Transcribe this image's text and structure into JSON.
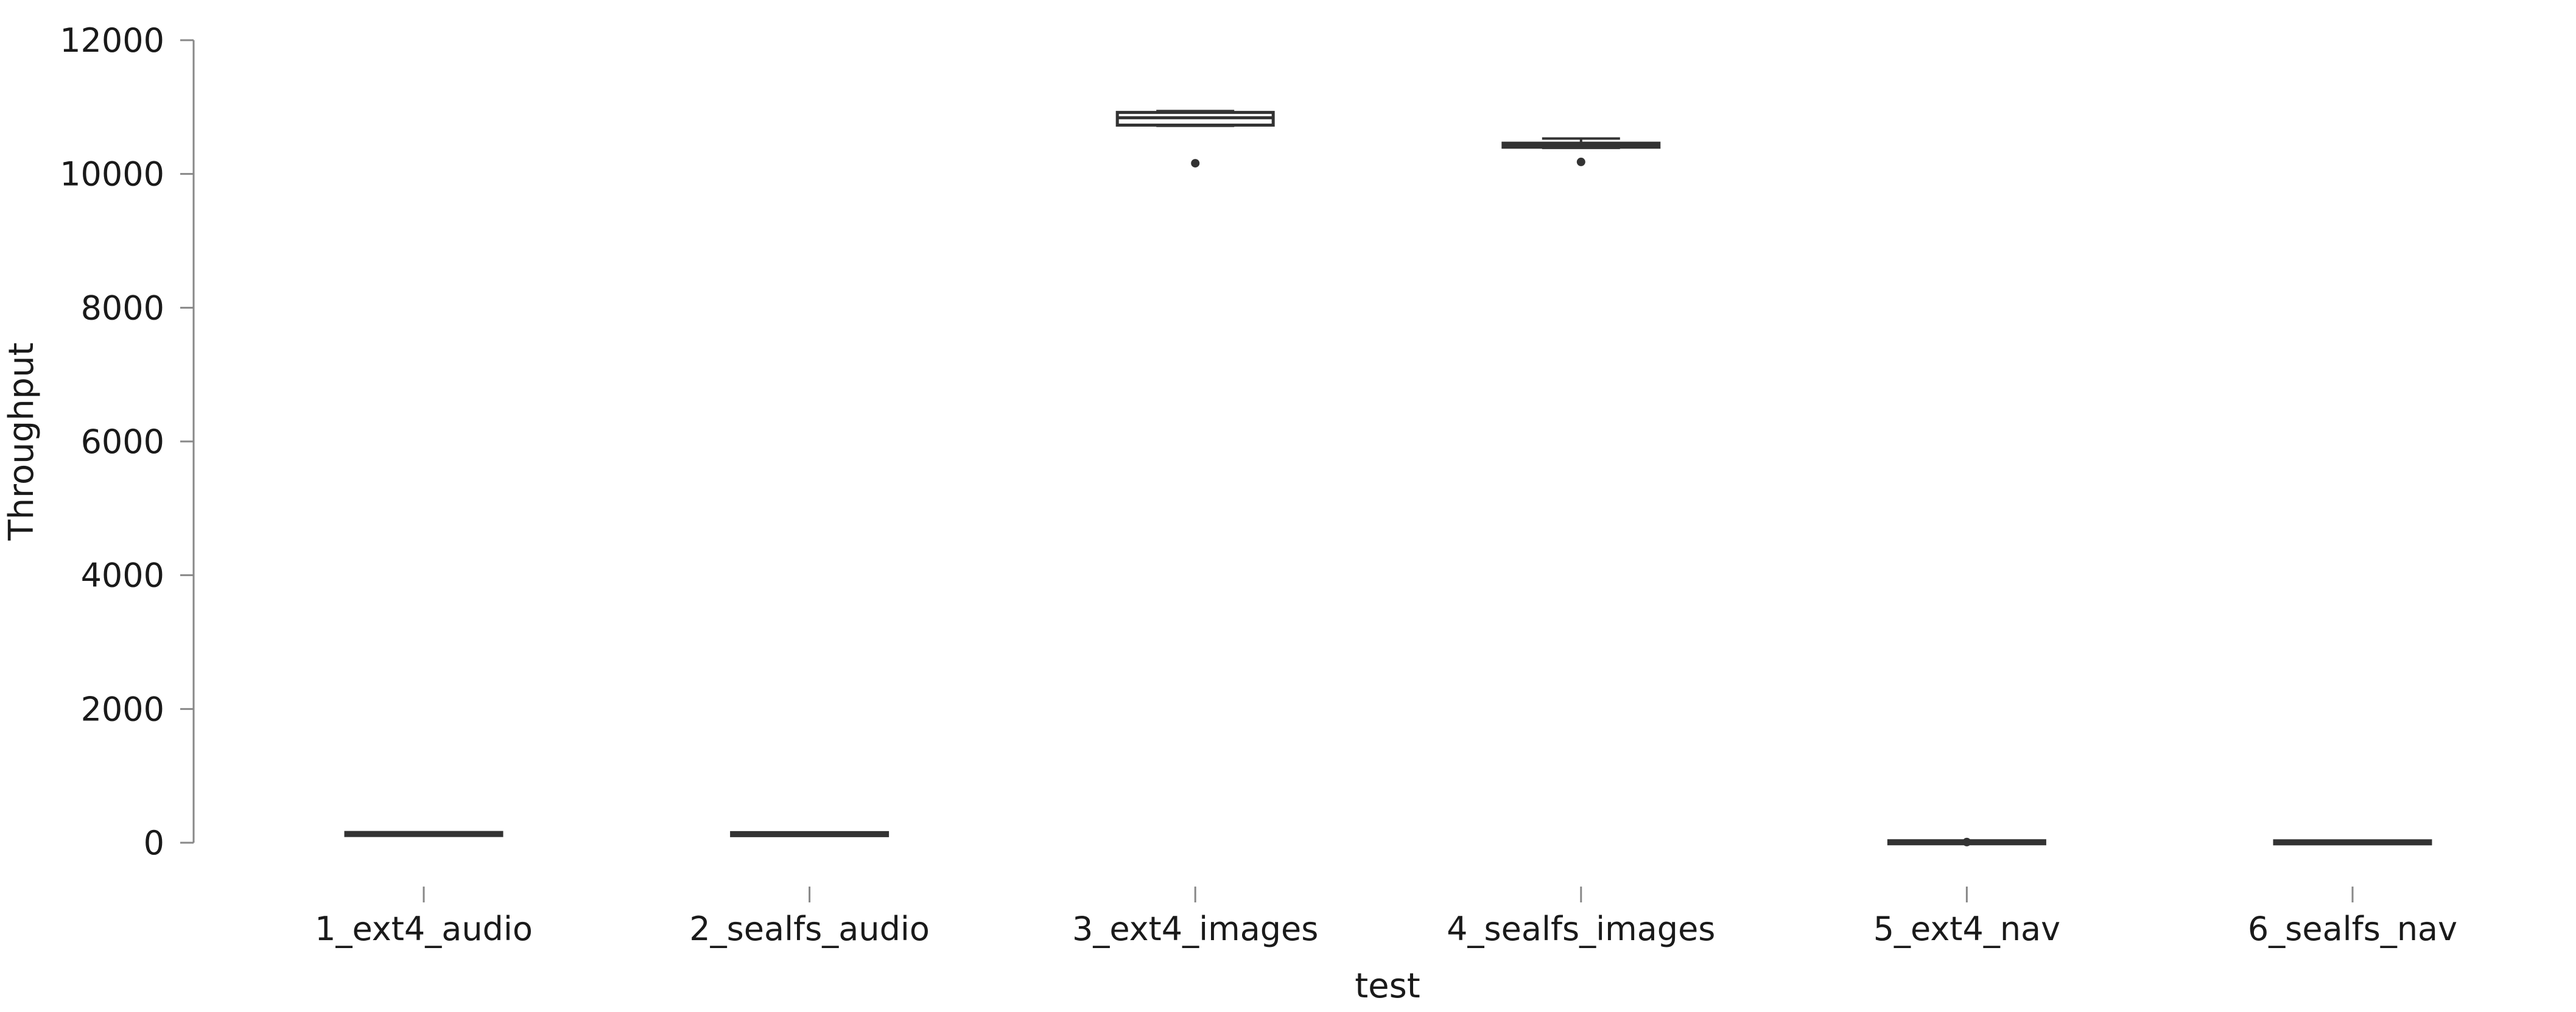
{
  "chart_data": {
    "type": "box",
    "title": "",
    "xlabel": "test",
    "ylabel": "Throughput",
    "ylim": [
      0,
      12000
    ],
    "yticks": [
      0,
      2000,
      4000,
      6000,
      8000,
      10000,
      12000
    ],
    "grid": false,
    "legend": "none",
    "colors": {
      "box_edge": "#333333",
      "axis": "#888888",
      "text": "#1a1a1a"
    },
    "categories": [
      "1_ext4_audio",
      "2_sealfs_audio",
      "3_ext4_images",
      "4_sealfs_images",
      "5_ext4_nav",
      "6_sealfs_nav"
    ],
    "boxes": [
      {
        "category": "1_ext4_audio",
        "whisker_low": 125,
        "q1": 128,
        "median": 130,
        "q3": 133,
        "whisker_high": 136,
        "outliers": []
      },
      {
        "category": "2_sealfs_audio",
        "whisker_low": 123,
        "q1": 126,
        "median": 128,
        "q3": 131,
        "whisker_high": 134,
        "outliers": []
      },
      {
        "category": "3_ext4_images",
        "whisker_low": 10720,
        "q1": 10730,
        "median": 10840,
        "q3": 10920,
        "whisker_high": 10940,
        "outliers": [
          10160
        ]
      },
      {
        "category": "4_sealfs_images",
        "whisker_low": 10390,
        "q1": 10400,
        "median": 10430,
        "q3": 10460,
        "whisker_high": 10530,
        "outliers": [
          10180
        ]
      },
      {
        "category": "5_ext4_nav",
        "whisker_low": 5,
        "q1": 6,
        "median": 7,
        "q3": 8,
        "whisker_high": 9,
        "outliers": [
          10
        ]
      },
      {
        "category": "6_sealfs_nav",
        "whisker_low": 4,
        "q1": 5,
        "median": 6,
        "q3": 7,
        "whisker_high": 8,
        "outliers": []
      }
    ]
  }
}
